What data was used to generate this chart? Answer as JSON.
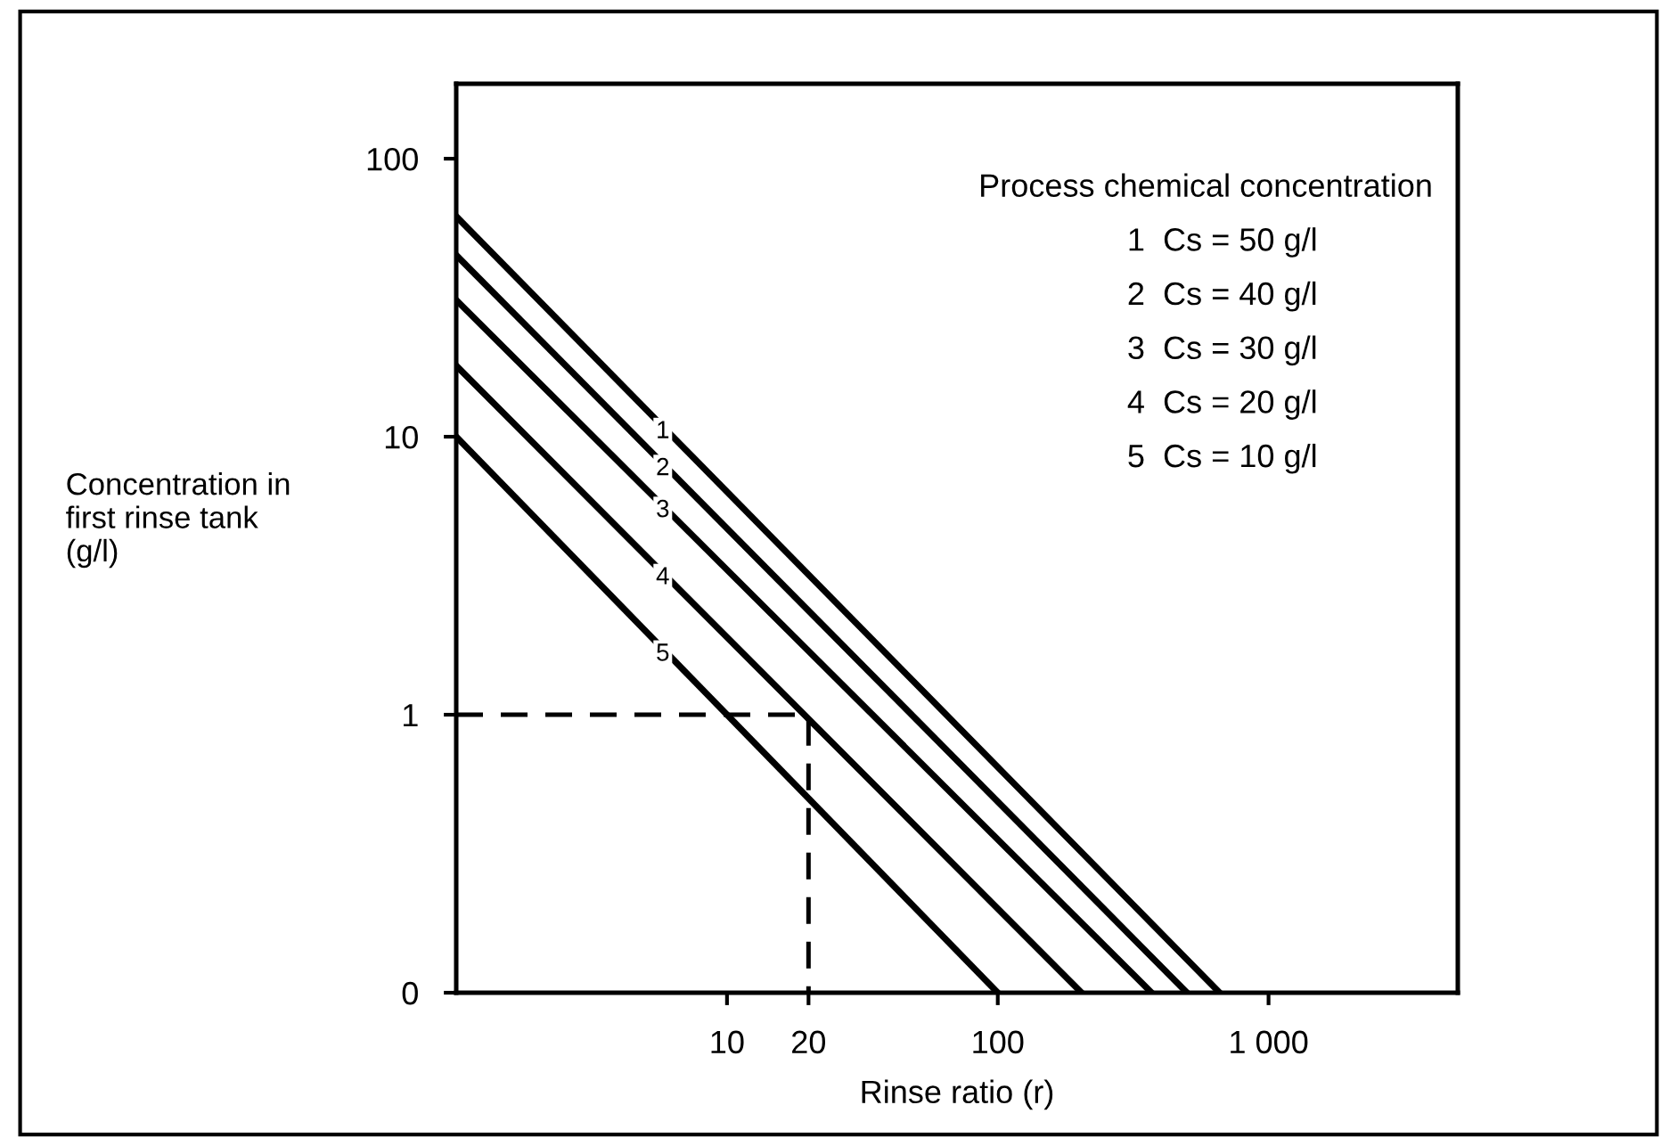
{
  "chart_data": {
    "type": "line",
    "xlabel": "Rinse ratio (r)",
    "ylabel": "Concentration in\nfirst rinse tank\n(g/l)",
    "log": "xy",
    "xlim": [
      1,
      5000
    ],
    "ylim": [
      0.1,
      186
    ],
    "xticks": [
      10,
      20,
      100,
      {
        "value": 1000,
        "label": "1 000"
      }
    ],
    "yticks": [
      {
        "value": 0.1,
        "label": "0"
      },
      1,
      10,
      100
    ],
    "grid": false,
    "marker": "none",
    "series": [
      {
        "color": "#000000",
        "x": [
          1,
          660
        ],
        "values": [
          62,
          0.1
        ]
      },
      {
        "color": "#000000",
        "x": [
          1,
          500
        ],
        "values": [
          45,
          0.1
        ]
      },
      {
        "color": "#000000",
        "x": [
          1,
          370
        ],
        "values": [
          31,
          0.1
        ]
      },
      {
        "color": "#000000",
        "x": [
          1,
          204
        ],
        "values": [
          18,
          0.1
        ]
      },
      {
        "color": "#000000",
        "x": [
          1,
          100
        ],
        "values": [
          10,
          0.1
        ]
      },
      {
        "color": "#000000",
        "line_style": "dashed",
        "x": [
          1,
          20,
          20
        ],
        "values": [
          1,
          1,
          0.1
        ]
      }
    ],
    "annotations": [
      "1",
      "2",
      "3",
      "4",
      "5",
      "Process chemical concentration",
      "1  Cs = 50 g/l",
      "2  Cs = 40 g/l",
      "3  Cs = 30 g/l",
      "4  Cs = 20 g/l",
      "5  Cs = 10 g/l"
    ]
  }
}
